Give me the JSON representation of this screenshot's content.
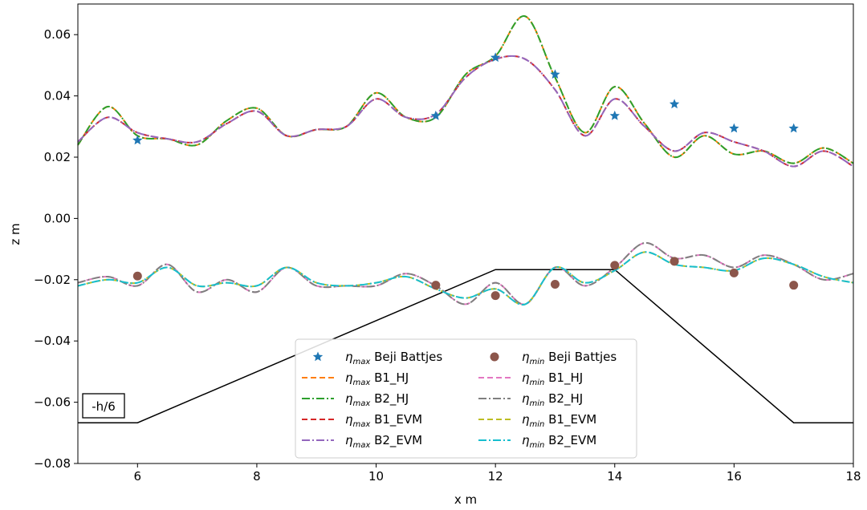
{
  "chart_data": {
    "type": "line",
    "xlabel": "x m",
    "ylabel": "z m",
    "xlim": [
      5,
      18
    ],
    "ylim": [
      -0.08,
      0.07
    ],
    "xticks": [
      "6",
      "8",
      "10",
      "12",
      "14",
      "16",
      "18"
    ],
    "yticks": [
      "−0.08",
      "−0.06",
      "−0.04",
      "−0.02",
      "0.00",
      "0.02",
      "0.04",
      "0.06"
    ],
    "grid": false,
    "legend_position": "lower-center",
    "annotation": "-h/6",
    "series": [
      {
        "name": "Beji Battjes",
        "var": "max",
        "kind": "scatter",
        "marker": "star",
        "color": "#1f77b4",
        "x": [
          6,
          11,
          12,
          13,
          14,
          15,
          16,
          17
        ],
        "y": [
          0.0255,
          0.0335,
          0.0525,
          0.047,
          0.0335,
          0.0373,
          0.0294,
          0.0294
        ]
      },
      {
        "name": "Beji Battjes",
        "var": "min",
        "kind": "scatter",
        "marker": "circle",
        "color": "#8c564b",
        "x": [
          6,
          11,
          12,
          13,
          14,
          15,
          16,
          17
        ],
        "y": [
          -0.0188,
          -0.0218,
          -0.0252,
          -0.0215,
          -0.0153,
          -0.014,
          -0.0178,
          -0.0218
        ]
      },
      {
        "name": "B1_HJ",
        "var": "max",
        "kind": "line",
        "dash": "dashed",
        "color": "#ff7f0e",
        "x": [
          5,
          5.5,
          6,
          6.5,
          7,
          7.5,
          8,
          8.5,
          9,
          9.5,
          10,
          10.5,
          11,
          11.5,
          12,
          12.5,
          13,
          13.5,
          14,
          14.5,
          15,
          15.5,
          16,
          16.5,
          17,
          17.5,
          18
        ],
        "y": [
          0.024,
          0.0365,
          0.027,
          0.026,
          0.024,
          0.032,
          0.036,
          0.027,
          0.029,
          0.03,
          0.041,
          0.033,
          0.033,
          0.047,
          0.053,
          0.066,
          0.046,
          0.028,
          0.043,
          0.031,
          0.02,
          0.027,
          0.021,
          0.022,
          0.018,
          0.023,
          0.018
        ]
      },
      {
        "name": "B2_HJ",
        "var": "max",
        "kind": "line",
        "dash": "dashdot",
        "color": "#2ca02c",
        "x": [
          5,
          5.5,
          6,
          6.5,
          7,
          7.5,
          8,
          8.5,
          9,
          9.5,
          10,
          10.5,
          11,
          11.5,
          12,
          12.5,
          13,
          13.5,
          14,
          14.5,
          15,
          15.5,
          16,
          16.5,
          17,
          17.5,
          18
        ],
        "y": [
          0.024,
          0.0365,
          0.027,
          0.026,
          0.024,
          0.032,
          0.036,
          0.027,
          0.029,
          0.03,
          0.041,
          0.033,
          0.033,
          0.047,
          0.053,
          0.066,
          0.046,
          0.028,
          0.043,
          0.031,
          0.02,
          0.027,
          0.021,
          0.022,
          0.018,
          0.023,
          0.018
        ]
      },
      {
        "name": "B1_EVM",
        "var": "max",
        "kind": "line",
        "dash": "dashed",
        "color": "#d62728",
        "x": [
          5,
          5.5,
          6,
          6.5,
          7,
          7.5,
          8,
          8.5,
          9,
          9.5,
          10,
          10.5,
          11,
          11.5,
          12,
          12.5,
          13,
          13.5,
          14,
          14.5,
          15,
          15.5,
          16,
          16.5,
          17,
          17.5,
          18
        ],
        "y": [
          0.025,
          0.033,
          0.028,
          0.026,
          0.025,
          0.031,
          0.035,
          0.027,
          0.029,
          0.03,
          0.039,
          0.033,
          0.034,
          0.046,
          0.052,
          0.052,
          0.042,
          0.027,
          0.039,
          0.03,
          0.022,
          0.028,
          0.025,
          0.022,
          0.017,
          0.022,
          0.017
        ]
      },
      {
        "name": "B2_EVM",
        "var": "max",
        "kind": "line",
        "dash": "dashdot",
        "color": "#9467bd",
        "x": [
          5,
          5.5,
          6,
          6.5,
          7,
          7.5,
          8,
          8.5,
          9,
          9.5,
          10,
          10.5,
          11,
          11.5,
          12,
          12.5,
          13,
          13.5,
          14,
          14.5,
          15,
          15.5,
          16,
          16.5,
          17,
          17.5,
          18
        ],
        "y": [
          0.025,
          0.033,
          0.028,
          0.026,
          0.025,
          0.031,
          0.035,
          0.027,
          0.029,
          0.03,
          0.039,
          0.033,
          0.034,
          0.046,
          0.052,
          0.052,
          0.042,
          0.027,
          0.039,
          0.03,
          0.022,
          0.028,
          0.025,
          0.022,
          0.017,
          0.022,
          0.017
        ]
      },
      {
        "name": "B1_HJ",
        "var": "min",
        "kind": "line",
        "dash": "dashed",
        "color": "#e377c2",
        "x": [
          5,
          5.5,
          6,
          6.5,
          7,
          7.5,
          8,
          8.5,
          9,
          9.5,
          10,
          10.5,
          11,
          11.5,
          12,
          12.5,
          13,
          13.5,
          14,
          14.5,
          15,
          15.5,
          16,
          16.5,
          17,
          17.5,
          18
        ],
        "y": [
          -0.021,
          -0.019,
          -0.022,
          -0.015,
          -0.024,
          -0.02,
          -0.024,
          -0.016,
          -0.022,
          -0.022,
          -0.022,
          -0.018,
          -0.022,
          -0.028,
          -0.021,
          -0.028,
          -0.016,
          -0.022,
          -0.016,
          -0.008,
          -0.013,
          -0.012,
          -0.016,
          -0.012,
          -0.015,
          -0.02,
          -0.018
        ]
      },
      {
        "name": "B2_HJ",
        "var": "min",
        "kind": "line",
        "dash": "dashdot",
        "color": "#7f7f7f",
        "x": [
          5,
          5.5,
          6,
          6.5,
          7,
          7.5,
          8,
          8.5,
          9,
          9.5,
          10,
          10.5,
          11,
          11.5,
          12,
          12.5,
          13,
          13.5,
          14,
          14.5,
          15,
          15.5,
          16,
          16.5,
          17,
          17.5,
          18
        ],
        "y": [
          -0.021,
          -0.019,
          -0.022,
          -0.015,
          -0.024,
          -0.02,
          -0.024,
          -0.016,
          -0.022,
          -0.022,
          -0.022,
          -0.018,
          -0.022,
          -0.028,
          -0.021,
          -0.028,
          -0.016,
          -0.022,
          -0.016,
          -0.008,
          -0.013,
          -0.012,
          -0.016,
          -0.012,
          -0.015,
          -0.02,
          -0.018
        ]
      },
      {
        "name": "B1_EVM",
        "var": "min",
        "kind": "line",
        "dash": "dashed",
        "color": "#bcbd22",
        "x": [
          5,
          5.5,
          6,
          6.5,
          7,
          7.5,
          8,
          8.5,
          9,
          9.5,
          10,
          10.5,
          11,
          11.5,
          12,
          12.5,
          13,
          13.5,
          14,
          14.5,
          15,
          15.5,
          16,
          16.5,
          17,
          17.5,
          18
        ],
        "y": [
          -0.022,
          -0.02,
          -0.021,
          -0.016,
          -0.022,
          -0.021,
          -0.022,
          -0.016,
          -0.021,
          -0.022,
          -0.021,
          -0.019,
          -0.023,
          -0.026,
          -0.023,
          -0.028,
          -0.016,
          -0.021,
          -0.017,
          -0.011,
          -0.015,
          -0.016,
          -0.017,
          -0.013,
          -0.015,
          -0.019,
          -0.021
        ]
      },
      {
        "name": "B2_EVM",
        "var": "min",
        "kind": "line",
        "dash": "dashdot",
        "color": "#17becf",
        "x": [
          5,
          5.5,
          6,
          6.5,
          7,
          7.5,
          8,
          8.5,
          9,
          9.5,
          10,
          10.5,
          11,
          11.5,
          12,
          12.5,
          13,
          13.5,
          14,
          14.5,
          15,
          15.5,
          16,
          16.5,
          17,
          17.5,
          18
        ],
        "y": [
          -0.022,
          -0.02,
          -0.021,
          -0.016,
          -0.022,
          -0.021,
          -0.022,
          -0.016,
          -0.021,
          -0.022,
          -0.021,
          -0.019,
          -0.023,
          -0.026,
          -0.023,
          -0.028,
          -0.016,
          -0.021,
          -0.017,
          -0.011,
          -0.015,
          -0.016,
          -0.017,
          -0.013,
          -0.015,
          -0.019,
          -0.021
        ]
      },
      {
        "name": "",
        "var": "",
        "kind": "line",
        "dash": "solid",
        "color": "#000000",
        "legend": false,
        "x": [
          5,
          6,
          12,
          14,
          17,
          18
        ],
        "y": [
          -0.0667,
          -0.0667,
          -0.0167,
          -0.0167,
          -0.0667,
          -0.0667
        ]
      }
    ]
  }
}
